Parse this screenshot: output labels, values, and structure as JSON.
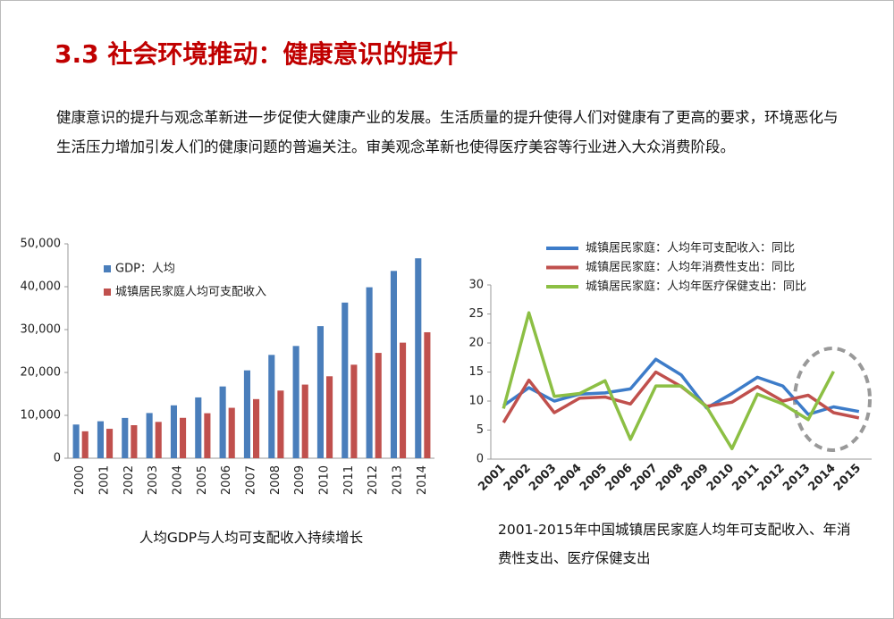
{
  "title": "3.3 社会环境推动：健康意识的提升",
  "paragraph": "健康意识的提升与观念革新进一步促使大健康产业的发展。生活质量的提升使得人们对健康有了更高的要求，环境恶化与生活压力增加引发人们的健康问题的普遍关注。审美观念革新也使得医疗美容等行业进入大众消费阶段。",
  "chart_data": [
    {
      "type": "bar",
      "caption": "人均GDP与人均可支配收入持续增长",
      "categories": [
        "2000",
        "2001",
        "2002",
        "2003",
        "2004",
        "2005",
        "2006",
        "2007",
        "2008",
        "2009",
        "2010",
        "2011",
        "2012",
        "2013",
        "2014"
      ],
      "series": [
        {
          "name": "GDP：人均",
          "color": "#4a7ebb",
          "values": [
            7858,
            8622,
            9398,
            10542,
            12336,
            14185,
            16738,
            20494,
            24100,
            26180,
            30808,
            36302,
            39874,
            43684,
            46629
          ]
        },
        {
          "name": "城镇居民家庭人均可支配收入",
          "color": "#c0504d",
          "values": [
            6280,
            6860,
            7703,
            8472,
            9422,
            10493,
            11759,
            13786,
            15781,
            17175,
            19109,
            21810,
            24565,
            26955,
            29381
          ]
        }
      ],
      "ylim": [
        0,
        50000
      ],
      "yticks": [
        0,
        {
          "value": 10000,
          "label": "10,000"
        },
        {
          "value": 20000,
          "label": "20,000"
        },
        {
          "value": 30000,
          "label": "30,000"
        },
        {
          "value": 40000,
          "label": "40,000"
        },
        {
          "value": 50000,
          "label": "50,000"
        }
      ],
      "grid": false,
      "legend": "top-left"
    },
    {
      "type": "line",
      "caption": "2001-2015年中国城镇居民家庭人均年可支配收入、年消费性支出、医疗保健支出",
      "categories": [
        "2001",
        "2002",
        "2003",
        "2004",
        "2005",
        "2006",
        "2007",
        "2008",
        "2009",
        "2010",
        "2011",
        "2012",
        "2013",
        "2014",
        "2015"
      ],
      "series": [
        {
          "name": "城镇居民家庭：人均年可支配收入：同比",
          "color": "#3d7cc9",
          "values": [
            9.2,
            12.3,
            10.0,
            11.2,
            11.4,
            12.1,
            17.2,
            14.5,
            8.8,
            11.3,
            14.1,
            12.6,
            7.7,
            9.0,
            8.2
          ]
        },
        {
          "name": "城镇居民家庭：人均年消费性支出：同比",
          "color": "#c0504d",
          "values": [
            6.3,
            13.6,
            8.0,
            10.5,
            10.7,
            9.5,
            15.0,
            12.5,
            9.1,
            9.8,
            12.5,
            10.0,
            11.0,
            8.0,
            7.1
          ]
        },
        {
          "name": "城镇居民家庭：人均年医疗保健支出：同比",
          "color": "#8cbf44",
          "values": [
            8.7,
            25.2,
            10.8,
            11.3,
            13.5,
            3.4,
            12.6,
            12.6,
            9.0,
            1.8,
            11.2,
            9.5,
            6.8,
            15.1,
            null
          ]
        }
      ],
      "ylim": [
        0,
        30
      ],
      "yticks": [
        0,
        5,
        10,
        15,
        20,
        25,
        30
      ],
      "grid": false,
      "legend": "top"
    }
  ]
}
